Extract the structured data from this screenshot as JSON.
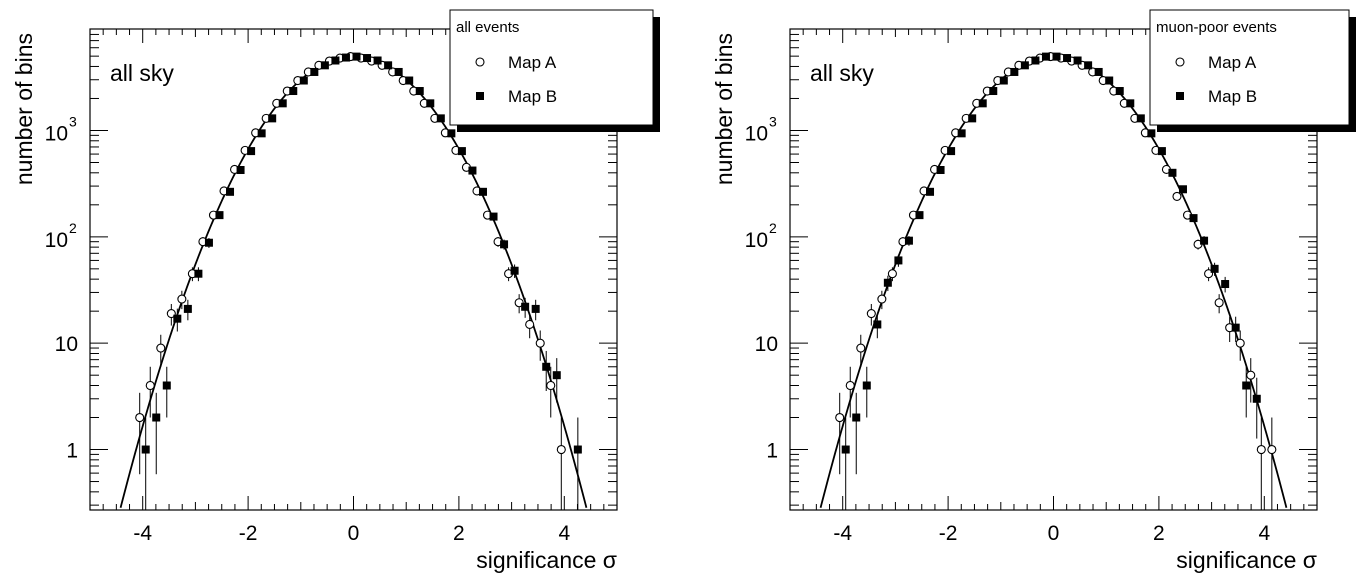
{
  "chart_data": [
    {
      "type": "scatter",
      "title": "",
      "annotation": "all sky",
      "xlabel": "significance σ",
      "ylabel": "number of bins",
      "xlim": [
        -5,
        5
      ],
      "ylim": [
        0.27,
        9000
      ],
      "yscale": "log",
      "xticks": [
        "-4",
        "-2",
        "0",
        "2",
        "4"
      ],
      "yticks": [
        {
          "value": 1,
          "label": "1",
          "base": "",
          "exp": ""
        },
        {
          "value": 10,
          "label": "10",
          "base": "",
          "exp": ""
        },
        {
          "value": 100,
          "label": "",
          "base": "10",
          "exp": "2"
        },
        {
          "value": 1000,
          "label": "",
          "base": "10",
          "exp": "3"
        }
      ],
      "legend": {
        "header": "all events",
        "position": "top-right",
        "entries": [
          {
            "label": "Map A",
            "marker": "open-circle"
          },
          {
            "label": "Map B",
            "marker": "filled-square"
          }
        ]
      },
      "fit_curve": {
        "type": "gaussian",
        "amplitude": 480,
        "mean": 0,
        "sigma": 1
      },
      "series": [
        {
          "name": "Map A",
          "marker": "open-circle",
          "points": [
            [
              -4.0,
              2
            ],
            [
              -3.8,
              4
            ],
            [
              -3.6,
              9
            ],
            [
              -3.4,
              19
            ],
            [
              -3.2,
              26
            ],
            [
              -3.0,
              45
            ],
            [
              -2.8,
              90
            ],
            [
              -2.6,
              160
            ],
            [
              -2.4,
              270
            ],
            [
              -2.2,
              430
            ],
            [
              -2.0,
              650
            ],
            [
              -1.8,
              950
            ],
            [
              -1.6,
              1300
            ],
            [
              -1.4,
              1800
            ],
            [
              -1.2,
              2350
            ],
            [
              -1.0,
              2950
            ],
            [
              -0.8,
              3550
            ],
            [
              -0.6,
              4100
            ],
            [
              -0.4,
              4500
            ],
            [
              -0.2,
              4800
            ],
            [
              0.0,
              4950
            ],
            [
              0.2,
              4800
            ],
            [
              0.4,
              4500
            ],
            [
              0.6,
              4100
            ],
            [
              0.8,
              3550
            ],
            [
              1.0,
              2950
            ],
            [
              1.2,
              2350
            ],
            [
              1.4,
              1800
            ],
            [
              1.6,
              1300
            ],
            [
              1.8,
              950
            ],
            [
              2.0,
              650
            ],
            [
              2.2,
              450
            ],
            [
              2.4,
              270
            ],
            [
              2.6,
              160
            ],
            [
              2.8,
              90
            ],
            [
              3.0,
              45
            ],
            [
              3.2,
              24
            ],
            [
              3.4,
              15
            ],
            [
              3.6,
              10
            ],
            [
              3.8,
              4
            ],
            [
              4.0,
              1
            ]
          ]
        },
        {
          "name": "Map B",
          "marker": "filled-square",
          "points": [
            [
              -4.0,
              1
            ],
            [
              -3.8,
              2
            ],
            [
              -3.6,
              4
            ],
            [
              -3.4,
              17
            ],
            [
              -3.2,
              21
            ],
            [
              -3.0,
              45
            ],
            [
              -2.8,
              88
            ],
            [
              -2.6,
              160
            ],
            [
              -2.4,
              265
            ],
            [
              -2.2,
              425
            ],
            [
              -2.0,
              640
            ],
            [
              -1.8,
              940
            ],
            [
              -1.6,
              1300
            ],
            [
              -1.4,
              1800
            ],
            [
              -1.2,
              2350
            ],
            [
              -1.0,
              2950
            ],
            [
              -0.8,
              3550
            ],
            [
              -0.6,
              4100
            ],
            [
              -0.4,
              4550
            ],
            [
              -0.2,
              4850
            ],
            [
              0.0,
              4950
            ],
            [
              0.2,
              4800
            ],
            [
              0.4,
              4550
            ],
            [
              0.6,
              4100
            ],
            [
              0.8,
              3550
            ],
            [
              1.0,
              2950
            ],
            [
              1.2,
              2350
            ],
            [
              1.4,
              1800
            ],
            [
              1.6,
              1300
            ],
            [
              1.8,
              940
            ],
            [
              2.0,
              640
            ],
            [
              2.2,
              420
            ],
            [
              2.4,
              265
            ],
            [
              2.6,
              155
            ],
            [
              2.8,
              85
            ],
            [
              3.0,
              48
            ],
            [
              3.2,
              22
            ],
            [
              3.4,
              21
            ],
            [
              3.6,
              6
            ],
            [
              3.8,
              5
            ],
            [
              4.2,
              1
            ]
          ]
        }
      ]
    },
    {
      "type": "scatter",
      "title": "",
      "annotation": "all sky",
      "xlabel": "significance σ",
      "ylabel": "number of bins",
      "xlim": [
        -5,
        5
      ],
      "ylim": [
        0.27,
        9000
      ],
      "yscale": "log",
      "xticks": [
        "-4",
        "-2",
        "0",
        "2",
        "4"
      ],
      "yticks": [
        {
          "value": 1,
          "label": "1",
          "base": "",
          "exp": ""
        },
        {
          "value": 10,
          "label": "10",
          "base": "",
          "exp": ""
        },
        {
          "value": 100,
          "label": "",
          "base": "10",
          "exp": "2"
        },
        {
          "value": 1000,
          "label": "",
          "base": "10",
          "exp": "3"
        }
      ],
      "legend": {
        "header": "muon-poor events",
        "position": "top-right",
        "entries": [
          {
            "label": "Map A",
            "marker": "open-circle"
          },
          {
            "label": "Map B",
            "marker": "filled-square"
          }
        ]
      },
      "fit_curve": {
        "type": "gaussian",
        "amplitude": 480,
        "mean": 0,
        "sigma": 1
      },
      "series": [
        {
          "name": "Map A",
          "marker": "open-circle",
          "points": [
            [
              -4.0,
              2
            ],
            [
              -3.8,
              4
            ],
            [
              -3.6,
              9
            ],
            [
              -3.4,
              19
            ],
            [
              -3.2,
              26
            ],
            [
              -3.0,
              45
            ],
            [
              -2.8,
              90
            ],
            [
              -2.6,
              160
            ],
            [
              -2.4,
              270
            ],
            [
              -2.2,
              430
            ],
            [
              -2.0,
              650
            ],
            [
              -1.8,
              950
            ],
            [
              -1.6,
              1300
            ],
            [
              -1.4,
              1800
            ],
            [
              -1.2,
              2350
            ],
            [
              -1.0,
              2950
            ],
            [
              -0.8,
              3550
            ],
            [
              -0.6,
              4100
            ],
            [
              -0.4,
              4500
            ],
            [
              -0.2,
              4800
            ],
            [
              0.0,
              4950
            ],
            [
              0.2,
              4800
            ],
            [
              0.4,
              4500
            ],
            [
              0.6,
              4100
            ],
            [
              0.8,
              3550
            ],
            [
              1.0,
              2950
            ],
            [
              1.2,
              2350
            ],
            [
              1.4,
              1800
            ],
            [
              1.6,
              1300
            ],
            [
              1.8,
              950
            ],
            [
              2.0,
              650
            ],
            [
              2.2,
              430
            ],
            [
              2.4,
              240
            ],
            [
              2.6,
              160
            ],
            [
              2.8,
              85
            ],
            [
              3.0,
              45
            ],
            [
              3.2,
              24
            ],
            [
              3.4,
              14
            ],
            [
              3.6,
              10
            ],
            [
              3.8,
              5
            ],
            [
              4.0,
              1
            ],
            [
              4.2,
              1
            ]
          ]
        },
        {
          "name": "Map B",
          "marker": "filled-square",
          "points": [
            [
              -4.0,
              1
            ],
            [
              -3.8,
              2
            ],
            [
              -3.6,
              4
            ],
            [
              -3.4,
              15
            ],
            [
              -3.2,
              37
            ],
            [
              -3.0,
              60
            ],
            [
              -2.8,
              92
            ],
            [
              -2.6,
              160
            ],
            [
              -2.4,
              265
            ],
            [
              -2.2,
              425
            ],
            [
              -2.0,
              640
            ],
            [
              -1.8,
              940
            ],
            [
              -1.6,
              1300
            ],
            [
              -1.4,
              1800
            ],
            [
              -1.2,
              2350
            ],
            [
              -1.0,
              2950
            ],
            [
              -0.8,
              3550
            ],
            [
              -0.6,
              4100
            ],
            [
              -0.4,
              4550
            ],
            [
              -0.2,
              4950
            ],
            [
              0.0,
              4950
            ],
            [
              0.2,
              4800
            ],
            [
              0.4,
              4550
            ],
            [
              0.6,
              4100
            ],
            [
              0.8,
              3550
            ],
            [
              1.0,
              2950
            ],
            [
              1.2,
              2350
            ],
            [
              1.4,
              1800
            ],
            [
              1.6,
              1300
            ],
            [
              1.8,
              940
            ],
            [
              2.0,
              640
            ],
            [
              2.2,
              400
            ],
            [
              2.4,
              280
            ],
            [
              2.6,
              150
            ],
            [
              2.8,
              92
            ],
            [
              3.0,
              50
            ],
            [
              3.2,
              36
            ],
            [
              3.4,
              14
            ],
            [
              3.6,
              4
            ],
            [
              3.8,
              3
            ]
          ]
        }
      ]
    }
  ]
}
